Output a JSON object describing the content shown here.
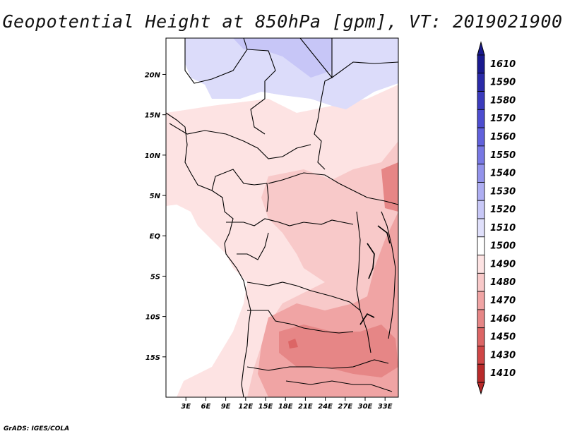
{
  "title": "Geopotential Height at 850hPa [gpm], VT: 2019021900",
  "credit": "GrADS: IGES/COLA",
  "colors": {
    "h1530": "#c7c6f7",
    "h1520": "#dcdcfa",
    "h1510": "#ffffff",
    "h1500": "#fde3e3",
    "h1490": "#f8c9c9",
    "h1480": "#f0a4a4",
    "h1470": "#e68686",
    "h1460": "#dc6565",
    "land_border": "#000000"
  },
  "map": {
    "lat_labels": [
      "20N",
      "15N",
      "10N",
      "5N",
      "EQ",
      "5S",
      "10S",
      "15S"
    ],
    "lon_labels": [
      "3E",
      "6E",
      "9E",
      "12E",
      "15E",
      "18E",
      "21E",
      "24E",
      "27E",
      "30E",
      "33E"
    ]
  },
  "colorbar": {
    "levels": [
      "1610",
      "1590",
      "1580",
      "1570",
      "1560",
      "1550",
      "1540",
      "1530",
      "1520",
      "1510",
      "1500",
      "1490",
      "1480",
      "1470",
      "1460",
      "1450",
      "1430",
      "1410"
    ],
    "colors": [
      "#1a1a8f",
      "#2a2aa8",
      "#3b3bbd",
      "#4d4dd0",
      "#6161dc",
      "#7878e4",
      "#9393eb",
      "#aeaef2",
      "#c8c8f7",
      "#e0e0fb",
      "#ffffff",
      "#fde3e3",
      "#f8c9c9",
      "#f0a4a4",
      "#e68686",
      "#dc6565",
      "#cf4646",
      "#b82a2a"
    ]
  }
}
